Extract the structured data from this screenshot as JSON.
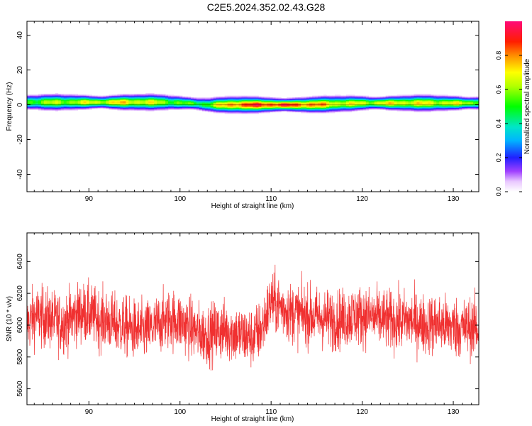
{
  "title": "C2E5.2024.352.02.43.G28",
  "chart_data": [
    {
      "type": "heatmap",
      "xlabel": "Height of straight line (km)",
      "ylabel": "Frequency (Hz)",
      "xlim": [
        83.2,
        132.8
      ],
      "ylim": [
        -50,
        48
      ],
      "xticks": [
        90,
        100,
        110,
        120,
        130
      ],
      "yticks": [
        -40,
        -20,
        0,
        20,
        40
      ],
      "colorbar": {
        "label": "Normalized spectral amplitude",
        "range": [
          0.0,
          1.0
        ],
        "ticks": [
          0.0,
          0.2,
          0.4,
          0.6,
          0.8
        ],
        "colormap": "rainbow (magenta-blue-cyan-green-yellow-red-pink)"
      },
      "ridge": [
        {
          "x": 83.5,
          "freq": 1.5,
          "amp": 0.55
        },
        {
          "x": 86,
          "freq": 1.5,
          "amp": 0.6
        },
        {
          "x": 90,
          "freq": 1.5,
          "amp": 0.65
        },
        {
          "x": 94,
          "freq": 1.5,
          "amp": 0.72
        },
        {
          "x": 98,
          "freq": 1.5,
          "amp": 0.62
        },
        {
          "x": 101,
          "freq": 1.0,
          "amp": 0.5
        },
        {
          "x": 103,
          "freq": 0.0,
          "amp": 0.55
        },
        {
          "x": 106,
          "freq": 0.0,
          "amp": 0.85
        },
        {
          "x": 110,
          "freq": 0.0,
          "amp": 0.9
        },
        {
          "x": 114,
          "freq": 0.0,
          "amp": 0.85
        },
        {
          "x": 117,
          "freq": 0.5,
          "amp": 0.7
        },
        {
          "x": 120,
          "freq": 1.0,
          "amp": 0.65
        },
        {
          "x": 124,
          "freq": 1.0,
          "amp": 0.7
        },
        {
          "x": 128,
          "freq": 1.0,
          "amp": 0.68
        },
        {
          "x": 132.5,
          "freq": 1.0,
          "amp": 0.62
        }
      ]
    },
    {
      "type": "line",
      "xlabel": "Height of straight line (km)",
      "ylabel": "SNR (10 * v/v)",
      "xlim": [
        83.2,
        132.8
      ],
      "ylim": [
        5500,
        6580
      ],
      "xticks": [
        90,
        100,
        110,
        120,
        130
      ],
      "yticks": [
        5600,
        5800,
        6000,
        6200,
        6400
      ],
      "color": "#f03030",
      "series": [
        {
          "x": [
            83.2,
            84,
            85,
            86,
            87,
            88,
            89,
            90,
            91,
            92,
            93,
            94,
            95,
            96,
            97,
            98,
            99,
            100,
            101,
            102,
            103,
            104,
            105,
            106,
            107,
            108,
            109,
            110,
            111,
            112,
            113,
            114,
            115,
            116,
            117,
            118,
            119,
            120,
            121,
            122,
            123,
            124,
            125,
            126,
            127,
            128,
            129,
            130,
            131,
            132,
            132.8
          ],
          "values": [
            6000,
            6060,
            6050,
            6030,
            6010,
            6040,
            6080,
            6070,
            6040,
            6030,
            6000,
            5990,
            5970,
            5960,
            5980,
            6020,
            6040,
            6020,
            5990,
            5950,
            5940,
            5960,
            5970,
            5950,
            5930,
            5920,
            5980,
            6150,
            6120,
            6080,
            6070,
            6060,
            6050,
            6040,
            6030,
            6040,
            6060,
            6060,
            6050,
            6040,
            6030,
            6020,
            6030,
            6020,
            6000,
            6010,
            6000,
            5990,
            5980,
            5990,
            5970
          ]
        }
      ]
    }
  ]
}
